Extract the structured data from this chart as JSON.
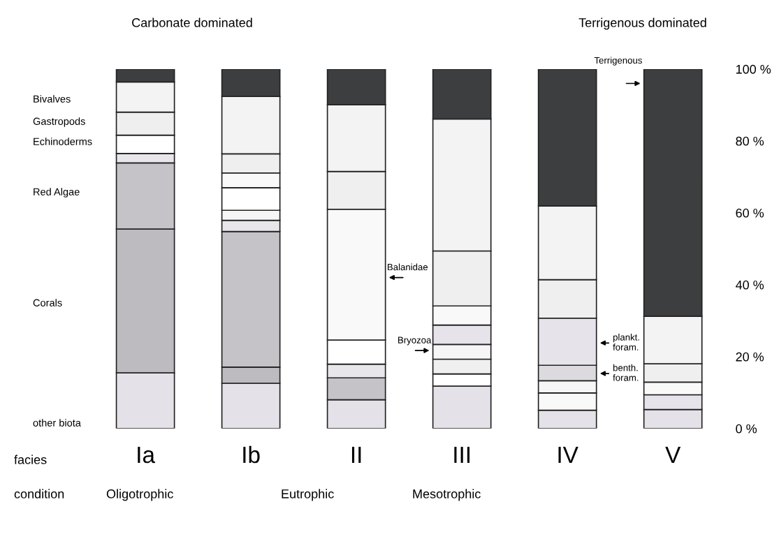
{
  "chart_data": {
    "type": "bar",
    "stacked": true,
    "grid": false,
    "legend": false,
    "categories": [
      "Ia",
      "Ib",
      "II",
      "III",
      "IV",
      "V"
    ],
    "ylim": [
      0,
      100
    ],
    "yticks": [
      {
        "value": 0,
        "label": "0 %"
      },
      {
        "value": 20,
        "label": "20 %"
      },
      {
        "value": 40,
        "label": "40 %"
      },
      {
        "value": 60,
        "label": "60 %"
      },
      {
        "value": 80,
        "label": "80 %"
      },
      {
        "value": 100,
        "label": "100 %"
      }
    ],
    "series": [
      {
        "values": [
          15.5,
          12.6,
          8.0,
          11.8,
          5.1,
          5.3
        ],
        "colors": [
          "#e4e2e8",
          "#e4e2e8",
          "#e4e2e8",
          "#e4e2e8",
          "#e4e2e8",
          "#e4e2e8"
        ]
      },
      {
        "values": [
          40,
          4.5,
          6.1,
          3.4,
          4.8,
          4.1
        ],
        "colors": [
          "#bdbac0",
          "#bdbac0",
          "#c5c2c8",
          "#ffffff",
          "#f9f9f9",
          "#e6e4ea"
        ]
      },
      {
        "values": [
          18.4,
          37.7,
          3.8,
          4.1,
          3.4,
          3.5
        ],
        "colors": [
          "#c5c2c8",
          "#c5c2c8",
          "#e8e6ea",
          "#efefef",
          "#f6f6f6",
          "#f9f9f9"
        ]
      },
      {
        "values": [
          2.6,
          3.1,
          6.7,
          4.1,
          4.3,
          5.1
        ],
        "colors": [
          "#e8e6ea",
          "#e8e6ea",
          "#ffffff",
          "#f6f6f6",
          "#dcdadf",
          "#efefef"
        ]
      },
      {
        "values": [
          5.1,
          2.8,
          36.4,
          5.4,
          13.1,
          13.2
        ],
        "colors": [
          "#ffffff",
          "#f6f6f6",
          "#f9f9f9",
          "#e6e4ea",
          "#e6e4ea",
          "#f3f3f3"
        ]
      },
      {
        "values": [
          6.4,
          6.3,
          10.5,
          5.3,
          10.7,
          68.8
        ],
        "colors": [
          "#efefef",
          "#ffffff",
          "#efefef",
          "#f9f9f9",
          "#efefef",
          "#3c3e40"
        ]
      },
      {
        "values": [
          8.4,
          4.1,
          18.6,
          15.3,
          20.5,
          null
        ],
        "colors": [
          "#f3f3f3",
          "#f9f9f9",
          "#f3f3f3",
          "#efefef",
          "#f3f3f3",
          "#ffffff"
        ]
      },
      {
        "values": [
          3.6,
          5.3,
          9.9,
          36.7,
          38.1,
          null
        ],
        "colors": [
          "#3c3e40",
          "#efefef",
          "#3c3e40",
          "#f3f3f3",
          "#3c3e40",
          "#ffffff"
        ]
      },
      {
        "values": [
          null,
          16.0,
          null,
          13.9,
          null,
          null
        ],
        "colors": [
          "#ffffff",
          "#f3f3f3",
          "#ffffff",
          "#3c3e40",
          "#ffffff",
          "#ffffff"
        ]
      },
      {
        "values": [
          null,
          7.6,
          null,
          null,
          null,
          null
        ],
        "colors": [
          "#ffffff",
          "#3c3e40",
          "#ffffff",
          "#ffffff",
          "#ffffff",
          "#ffffff"
        ]
      }
    ],
    "annotations": [
      "Carbonate dominated",
      "Terrigenous dominated",
      "facies",
      "condition",
      "Oligotrophic",
      "Eutrophic",
      "Mesotrophic",
      "Bivalves",
      "Gastropods",
      "Echinoderms",
      "Red Algae",
      "Corals",
      "other biota",
      "Balanidae",
      "Bryozoa",
      "plankt.\nforam.",
      "benth.\nforam.",
      "Terrigenous"
    ]
  }
}
